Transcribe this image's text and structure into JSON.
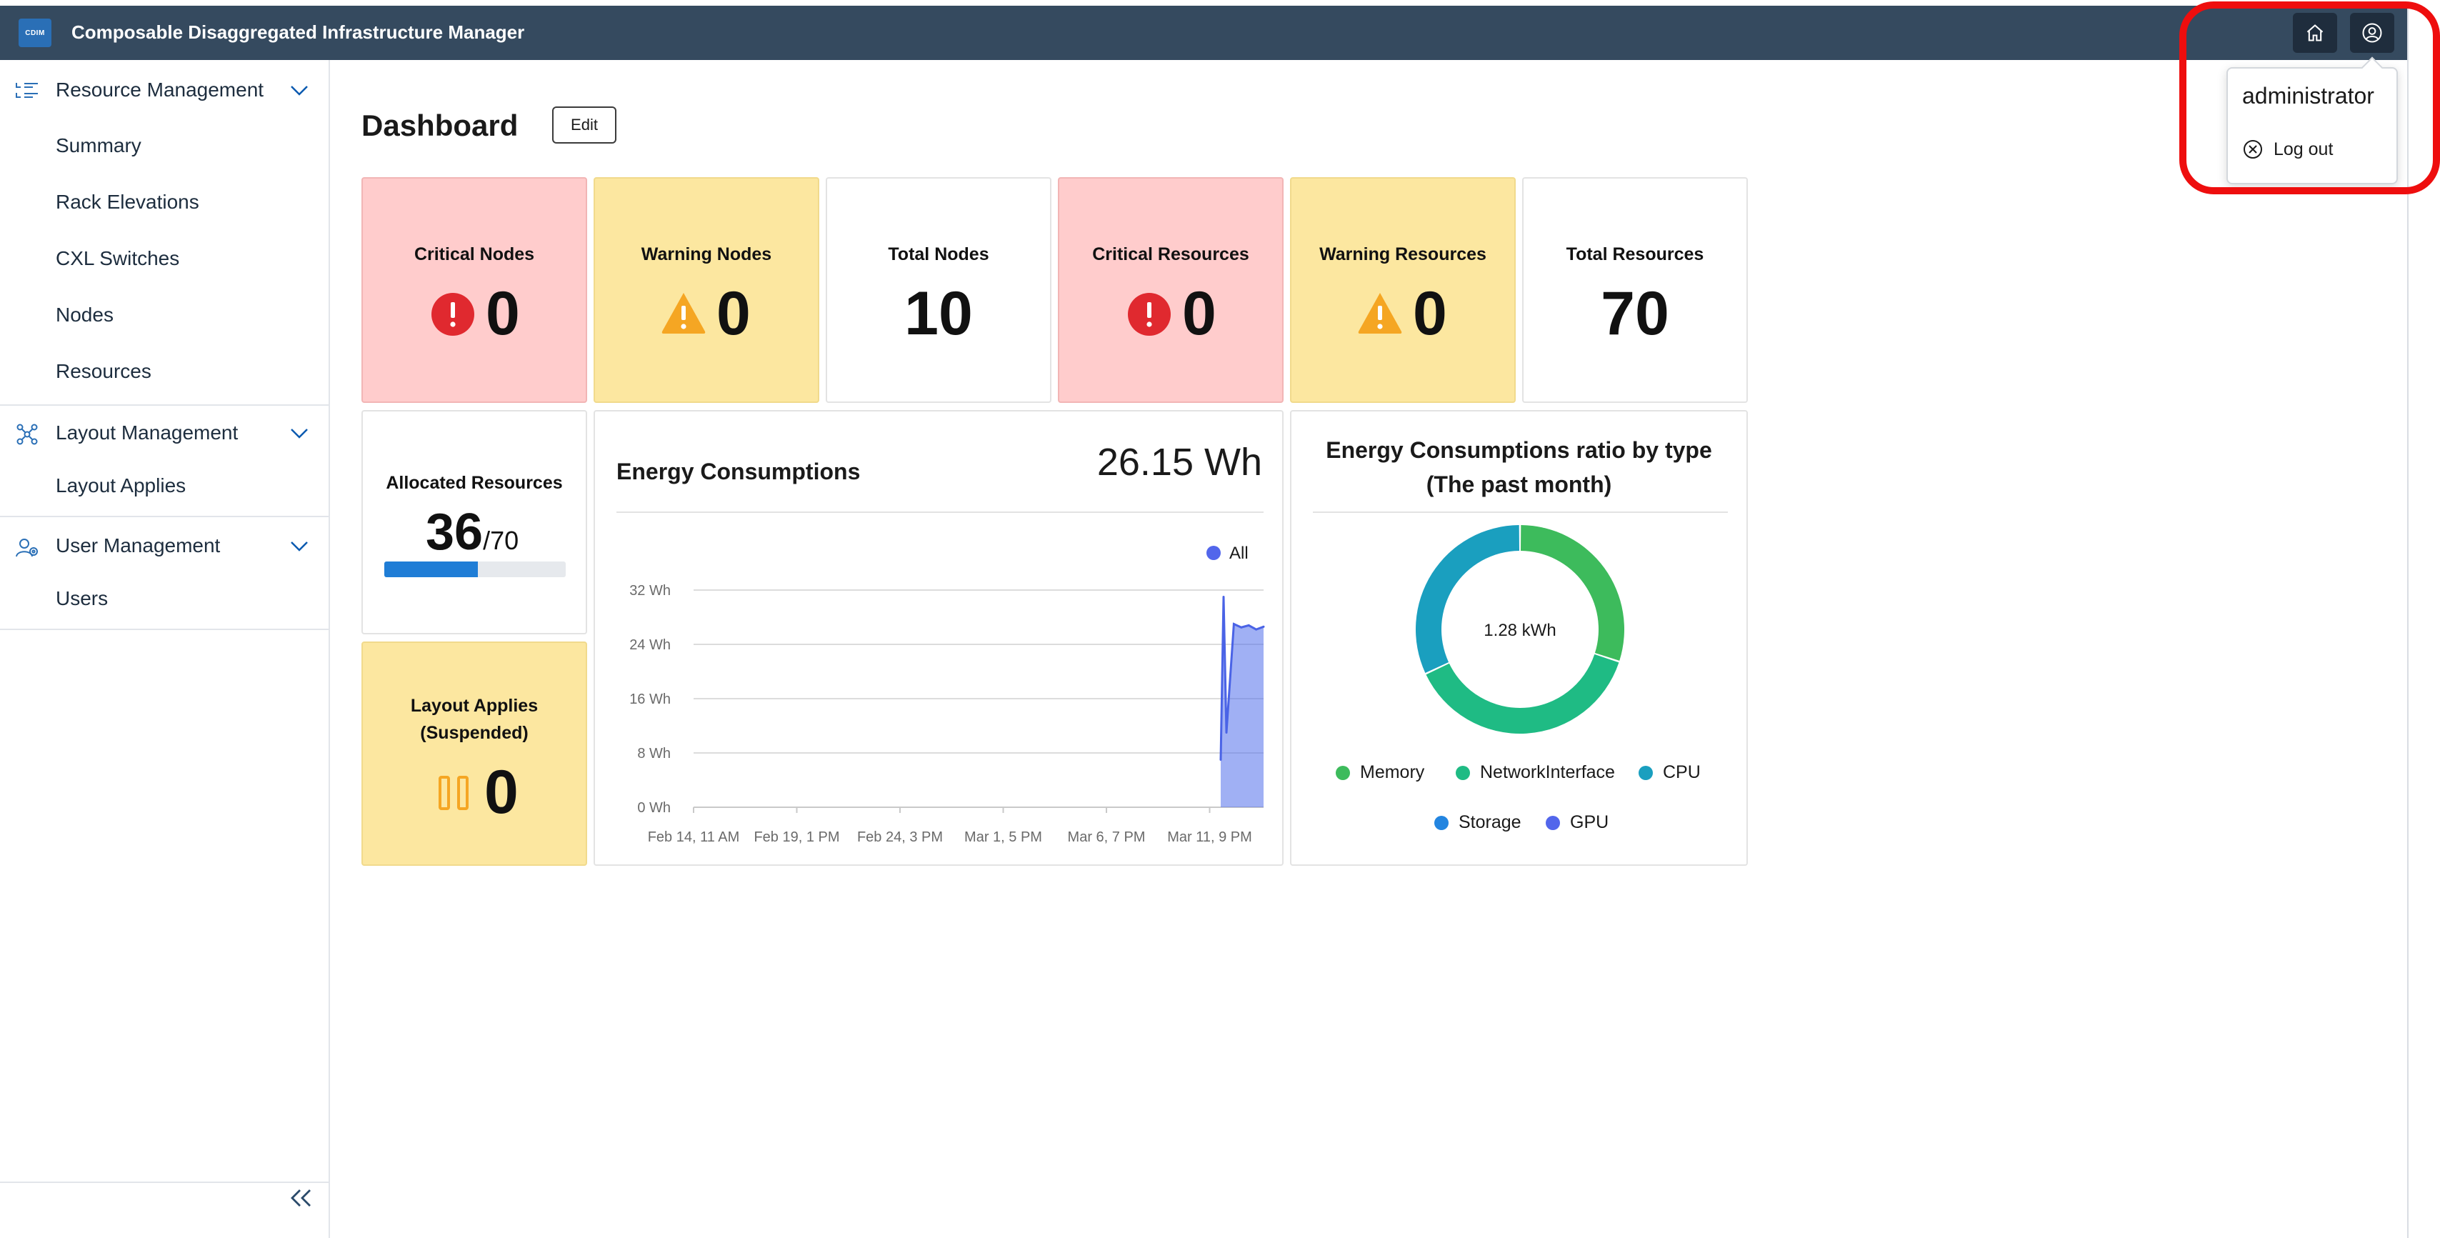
{
  "app": {
    "logo_text": "CDIM",
    "title": "Composable Disaggregated Infrastructure Manager"
  },
  "user_menu": {
    "username": "administrator",
    "logout_label": "Log out"
  },
  "sidebar": {
    "groups": [
      {
        "label": "Resource Management",
        "items": [
          "Summary",
          "Rack Elevations",
          "CXL Switches",
          "Nodes",
          "Resources"
        ]
      },
      {
        "label": "Layout Management",
        "items": [
          "Layout Applies"
        ]
      },
      {
        "label": "User Management",
        "items": [
          "Users"
        ]
      }
    ]
  },
  "dashboard": {
    "title": "Dashboard",
    "edit_label": "Edit",
    "critical_nodes": {
      "label": "Critical Nodes",
      "value": "0"
    },
    "warning_nodes": {
      "label": "Warning Nodes",
      "value": "0"
    },
    "total_nodes": {
      "label": "Total Nodes",
      "value": "10"
    },
    "critical_resources": {
      "label": "Critical Resources",
      "value": "0"
    },
    "warning_resources": {
      "label": "Warning Resources",
      "value": "0"
    },
    "total_resources": {
      "label": "Total Resources",
      "value": "70"
    },
    "allocated_resources": {
      "label": "Allocated Resources",
      "value": "36",
      "total": "/70",
      "fraction": 0.514
    },
    "layout_applies": {
      "label_line1": "Layout Applies",
      "label_line2": "(Suspended)",
      "value": "0"
    },
    "energy": {
      "title": "Energy Consumptions",
      "total": "26.15 Wh"
    },
    "energy_ratio": {
      "title_line1": "Energy Consumptions ratio by type",
      "title_line2": "(The past month)",
      "center_label": "1.28 kWh"
    }
  },
  "colors": {
    "topbar": "#354a5f",
    "critical_bg": "#ffcccc",
    "warning_bg": "#fce7a0",
    "critical_icon": "#e0292f",
    "warning_icon": "#f5a623",
    "progress": "#1f7dd6",
    "highlight": "#ee0e0e"
  },
  "icons": {
    "home": "home-icon",
    "user": "user-circle-icon",
    "critical": "exclamation-circle-icon",
    "warning": "warning-triangle-icon",
    "suspended": "pause-icon",
    "logout": "close-circle-icon",
    "collapse": "double-chevron-left-icon"
  },
  "chart_data": [
    {
      "type": "area",
      "legend": [
        "All"
      ],
      "legend_position": "top-right",
      "ylim": [
        0,
        32
      ],
      "yticks": [
        "0 Wh",
        "8 Wh",
        "16 Wh",
        "24 Wh",
        "32 Wh"
      ],
      "xticks": [
        "Feb 14, 11 AM",
        "Feb 19, 1 PM",
        "Feb 24, 3 PM",
        "Mar 1, 5 PM",
        "Mar 6, 7 PM",
        "Mar 11, 9 PM"
      ],
      "grid": true,
      "series": [
        {
          "name": "All",
          "x": [
            "Mar 11, 9 PM",
            "Mar 11, 9 PM",
            "Mar 12, 1 AM",
            "Mar 12, 6 AM",
            "Mar 12, 10 AM",
            "Mar 12, 3 PM",
            "Mar 12, 8 PM",
            "Mar 13, 12 AM"
          ],
          "y": [
            7,
            31,
            11,
            27,
            26.5,
            26.8,
            26.2,
            26.6
          ]
        }
      ]
    },
    {
      "type": "pie",
      "donut": true,
      "legend_position": "bottom",
      "slices": [
        {
          "name": "Memory",
          "value": 0.3,
          "color": "#3dbb5c"
        },
        {
          "name": "NetworkInterface",
          "value": 0.38,
          "color": "#1fbb84"
        },
        {
          "name": "CPU",
          "value": 0.32,
          "color": "#1a9fbf"
        },
        {
          "name": "Storage",
          "value": 0,
          "color": "#2385e0"
        },
        {
          "name": "GPU",
          "value": 0,
          "color": "#5266eb"
        }
      ]
    }
  ]
}
